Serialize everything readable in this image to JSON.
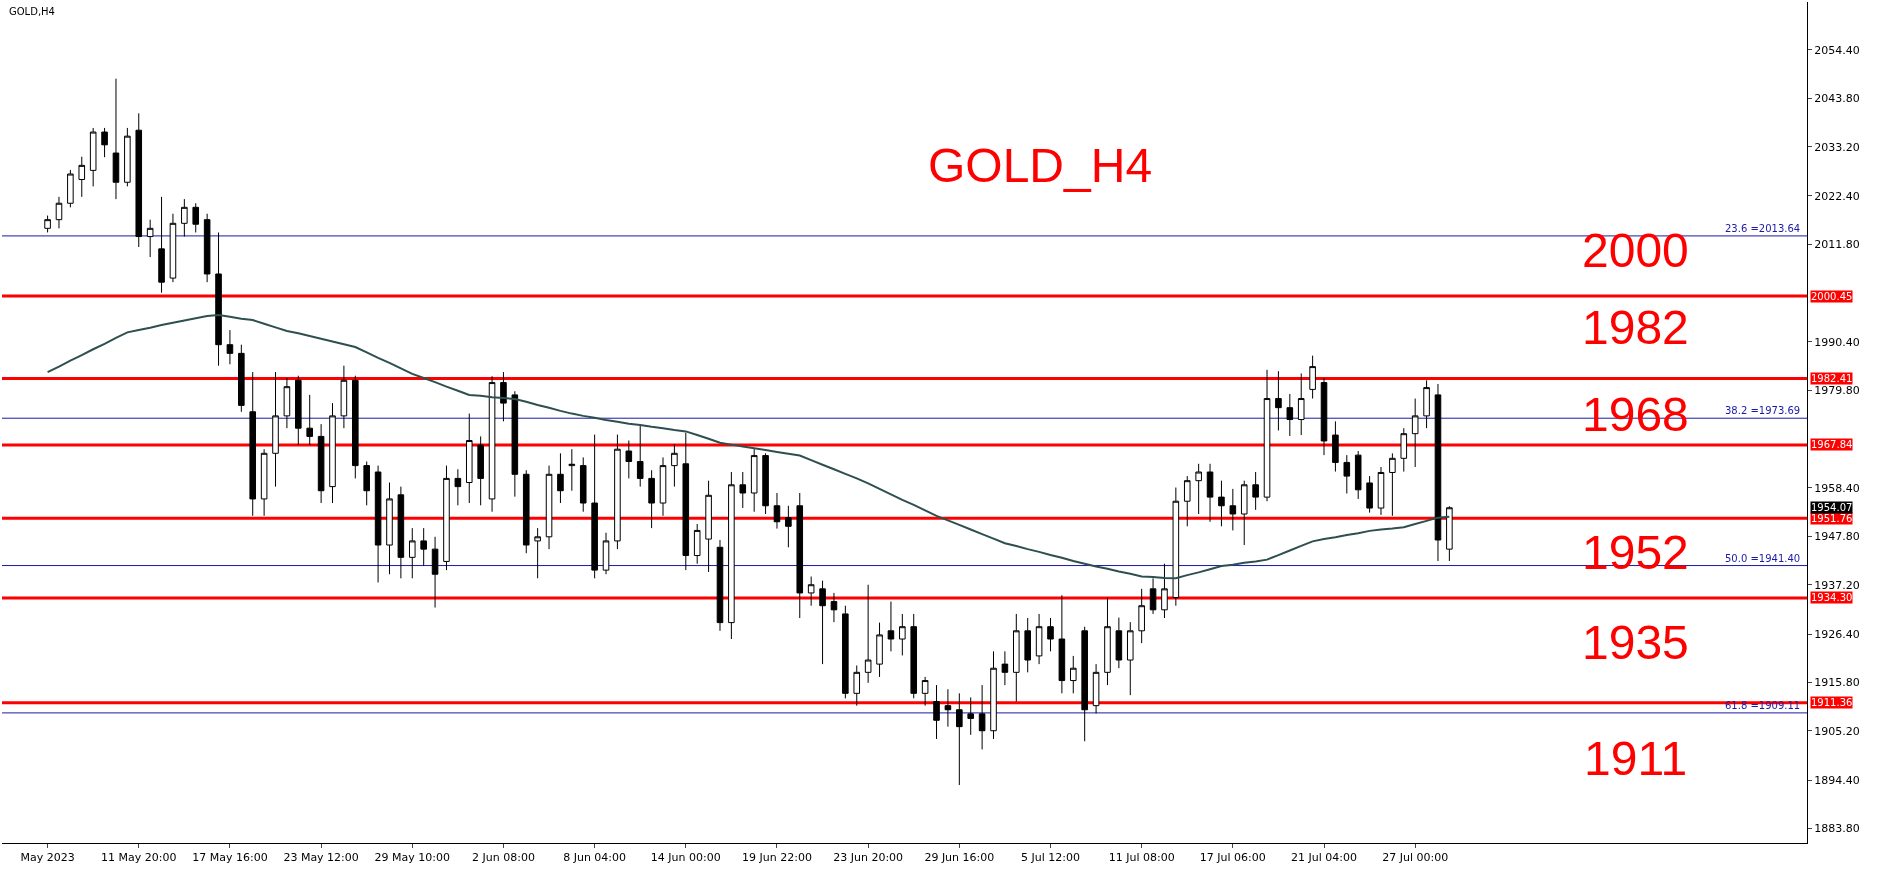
{
  "chart_data": {
    "type": "candlestick",
    "title": "GOLD,H4",
    "subtitle": "GOLD_H4",
    "color": "#000000",
    "categories": [
      "May 2023",
      null,
      null,
      null,
      null,
      null,
      null,
      null,
      "11 May 20:00",
      null,
      null,
      null,
      null,
      null,
      null,
      null,
      "17 May 16:00",
      null,
      null,
      null,
      null,
      null,
      null,
      null,
      "23 May 12:00",
      null,
      null,
      null,
      null,
      null,
      null,
      null,
      "29 May 10:00",
      null,
      null,
      null,
      null,
      null,
      null,
      null,
      "2 Jun 08:00",
      null,
      null,
      null,
      null,
      null,
      null,
      null,
      "8 Jun 04:00",
      null,
      null,
      null,
      null,
      null,
      null,
      null,
      "14 Jun 00:00",
      null,
      null,
      null,
      null,
      null,
      null,
      null,
      "19 Jun 22:00",
      null,
      null,
      null,
      null,
      null,
      null,
      null,
      "23 Jun 20:00",
      null,
      null,
      null,
      null,
      null,
      null,
      null,
      "29 Jun 16:00",
      null,
      null,
      null,
      null,
      null,
      null,
      null,
      "5 Jul 12:00",
      null,
      null,
      null,
      null,
      null,
      null,
      null,
      "11 Jul 08:00",
      null,
      null,
      null,
      null,
      null,
      null,
      null,
      "17 Jul 06:00",
      null,
      null,
      null,
      null,
      null,
      null,
      null,
      "21 Jul 04:00",
      null,
      null,
      null,
      null,
      null,
      null,
      null,
      "27 Jul 00:00",
      null,
      null,
      null
    ],
    "ohlc": [
      [
        2015.3,
        2018.1,
        2014.4,
        2017.2
      ],
      [
        2017.2,
        2022.2,
        2015.3,
        2020.8
      ],
      [
        2020.8,
        2028.1,
        2019.9,
        2027.2
      ],
      [
        2026.0,
        2031.0,
        2022.2,
        2029.1
      ],
      [
        2028.0,
        2037.3,
        2024.5,
        2036.4
      ],
      [
        2036.4,
        2037.3,
        2030.9,
        2033.6
      ],
      [
        2031.8,
        2048.1,
        2021.7,
        2025.4
      ],
      [
        2025.4,
        2037.3,
        2024.5,
        2035.5
      ],
      [
        2036.8,
        2040.5,
        2011.2,
        2013.5
      ],
      [
        2013.5,
        2017.2,
        2009.0,
        2015.3
      ],
      [
        2010.8,
        2022.2,
        2001.2,
        2003.5
      ],
      [
        2004.4,
        2018.5,
        2003.5,
        2016.4
      ],
      [
        2016.4,
        2021.7,
        2013.5,
        2019.9
      ],
      [
        2019.9,
        2020.8,
        2014.4,
        2016.2
      ],
      [
        2017.2,
        2018.5,
        2003.5,
        2005.3
      ],
      [
        2005.3,
        2014.4,
        1985.2,
        1989.8
      ],
      [
        1989.8,
        1993.0,
        1985.5,
        1987.9
      ],
      [
        1987.9,
        1989.8,
        1975.1,
        1976.5
      ],
      [
        1975.1,
        1983.8,
        1952.3,
        1956.0
      ],
      [
        1956.0,
        1966.9,
        1952.3,
        1966.0
      ],
      [
        1966.0,
        1983.8,
        1958.7,
        1974.2
      ],
      [
        1974.2,
        1982.5,
        1971.5,
        1980.6
      ],
      [
        1982.0,
        1983.0,
        1967.8,
        1971.5
      ],
      [
        1971.5,
        1978.8,
        1967.8,
        1969.7
      ],
      [
        1969.7,
        1972.4,
        1955.1,
        1957.8
      ],
      [
        1958.7,
        1977.0,
        1955.1,
        1974.2
      ],
      [
        1974.2,
        1985.2,
        1971.5,
        1982.0
      ],
      [
        1982.0,
        1983.0,
        1960.5,
        1963.3
      ],
      [
        1963.3,
        1964.2,
        1954.6,
        1957.8
      ],
      [
        1961.9,
        1963.3,
        1937.7,
        1945.9
      ],
      [
        1945.9,
        1959.6,
        1939.5,
        1956.0
      ],
      [
        1956.9,
        1958.7,
        1938.6,
        1943.2
      ],
      [
        1943.2,
        1949.6,
        1938.6,
        1946.8
      ],
      [
        1946.8,
        1949.6,
        1941.4,
        1945.0
      ],
      [
        1945.0,
        1947.7,
        1932.2,
        1939.5
      ],
      [
        1942.3,
        1963.3,
        1940.4,
        1960.5
      ],
      [
        1960.5,
        1962.5,
        1954.6,
        1958.7
      ],
      [
        1959.6,
        1974.7,
        1955.1,
        1968.8
      ],
      [
        1967.8,
        1969.7,
        1954.6,
        1960.5
      ],
      [
        1956.0,
        1982.9,
        1953.2,
        1981.5
      ],
      [
        1981.5,
        1983.8,
        1973.0,
        1977.0
      ],
      [
        1978.8,
        1979.6,
        1956.5,
        1961.4
      ],
      [
        1961.4,
        1962.3,
        1944.1,
        1945.9
      ],
      [
        1946.8,
        1949.6,
        1938.6,
        1947.7
      ],
      [
        1947.7,
        1963.3,
        1945.0,
        1961.4
      ],
      [
        1961.4,
        1966.0,
        1955.1,
        1957.8
      ],
      [
        1963.3,
        1966.9,
        1957.8,
        1963.6
      ],
      [
        1963.3,
        1965.1,
        1953.2,
        1955.1
      ],
      [
        1955.1,
        1970.1,
        1938.6,
        1940.4
      ],
      [
        1940.4,
        1948.6,
        1939.5,
        1946.8
      ],
      [
        1946.8,
        1970.1,
        1945.0,
        1966.9
      ],
      [
        1966.5,
        1968.8,
        1960.5,
        1964.2
      ],
      [
        1964.2,
        1972.4,
        1958.7,
        1960.5
      ],
      [
        1960.5,
        1962.3,
        1949.6,
        1955.1
      ],
      [
        1955.1,
        1965.1,
        1952.3,
        1963.3
      ],
      [
        1963.3,
        1968.0,
        1958.7,
        1966.0
      ],
      [
        1963.7,
        1970.5,
        1940.4,
        1943.6
      ],
      [
        1943.6,
        1950.5,
        1941.8,
        1949.1
      ],
      [
        1947.2,
        1960.0,
        1940.0,
        1956.8
      ],
      [
        1945.4,
        1947.0,
        1927.1,
        1928.9
      ],
      [
        1928.9,
        1961.9,
        1925.3,
        1959.1
      ],
      [
        1959.1,
        1961.9,
        1954.0,
        1957.3
      ],
      [
        1957.3,
        1966.9,
        1953.2,
        1965.5
      ],
      [
        1965.5,
        1966.0,
        1952.7,
        1954.5
      ],
      [
        1954.5,
        1957.3,
        1949.5,
        1951.0
      ],
      [
        1951.9,
        1954.5,
        1945.4,
        1950.0
      ],
      [
        1954.5,
        1957.3,
        1929.9,
        1935.4
      ],
      [
        1935.4,
        1939.0,
        1932.6,
        1937.2
      ],
      [
        1936.3,
        1938.1,
        1919.8,
        1932.6
      ],
      [
        1933.5,
        1935.4,
        1929.0,
        1931.7
      ],
      [
        1930.8,
        1932.6,
        1912.3,
        1913.4
      ],
      [
        1913.4,
        1919.5,
        1910.7,
        1918.0
      ],
      [
        1918.0,
        1937.2,
        1915.7,
        1920.7
      ],
      [
        1919.8,
        1928.9,
        1917.0,
        1926.2
      ],
      [
        1927.1,
        1933.5,
        1922.6,
        1925.3
      ],
      [
        1925.3,
        1930.8,
        1921.7,
        1928.0
      ],
      [
        1928.0,
        1930.8,
        1912.3,
        1913.4
      ],
      [
        1913.4,
        1917.0,
        1910.7,
        1916.2
      ],
      [
        1911.6,
        1915.2,
        1903.4,
        1907.5
      ],
      [
        1910.7,
        1914.3,
        1906.1,
        1909.8
      ],
      [
        1909.8,
        1913.4,
        1893.3,
        1906.1
      ],
      [
        1908.9,
        1912.5,
        1904.3,
        1907.9
      ],
      [
        1908.9,
        1915.2,
        1901.1,
        1905.2
      ],
      [
        1905.2,
        1922.6,
        1903.4,
        1918.9
      ],
      [
        1919.8,
        1922.6,
        1915.2,
        1918.0
      ],
      [
        1918.0,
        1930.8,
        1911.6,
        1927.1
      ],
      [
        1927.1,
        1929.9,
        1918.0,
        1920.7
      ],
      [
        1921.6,
        1930.8,
        1919.8,
        1928.0
      ],
      [
        1928.0,
        1929.9,
        1922.6,
        1925.3
      ],
      [
        1925.3,
        1934.9,
        1913.4,
        1916.2
      ],
      [
        1916.2,
        1921.6,
        1913.4,
        1918.9
      ],
      [
        1927.1,
        1928.0,
        1902.9,
        1909.8
      ],
      [
        1910.7,
        1919.8,
        1909.0,
        1918.0
      ],
      [
        1918.0,
        1934.4,
        1915.2,
        1928.0
      ],
      [
        1927.1,
        1930.0,
        1918.9,
        1920.7
      ],
      [
        1920.7,
        1929.0,
        1913.0,
        1927.1
      ],
      [
        1927.1,
        1936.3,
        1924.4,
        1932.6
      ],
      [
        1936.3,
        1938.6,
        1930.8,
        1931.7
      ],
      [
        1931.7,
        1941.8,
        1929.9,
        1936.3
      ],
      [
        1934.4,
        1958.5,
        1932.6,
        1955.5
      ],
      [
        1955.5,
        1961.0,
        1950.0,
        1960.0
      ],
      [
        1960.0,
        1963.7,
        1952.7,
        1961.9
      ],
      [
        1961.9,
        1963.7,
        1951.0,
        1956.4
      ],
      [
        1956.4,
        1960.0,
        1950.0,
        1954.5
      ],
      [
        1954.5,
        1958.2,
        1949.1,
        1952.7
      ],
      [
        1952.7,
        1960.0,
        1945.9,
        1959.1
      ],
      [
        1959.1,
        1961.9,
        1953.6,
        1956.4
      ],
      [
        1956.4,
        1984.3,
        1955.5,
        1978.0
      ],
      [
        1978.0,
        1984.0,
        1971.0,
        1976.0
      ],
      [
        1976.0,
        1979.0,
        1969.8,
        1973.4
      ],
      [
        1973.4,
        1983.5,
        1970.0,
        1978.0
      ],
      [
        1980.0,
        1987.4,
        1978.0,
        1985.0
      ],
      [
        1981.5,
        1982.5,
        1965.6,
        1968.7
      ],
      [
        1970.0,
        1973.0,
        1962.0,
        1964.0
      ],
      [
        1964.0,
        1965.6,
        1957.2,
        1961.0
      ],
      [
        1965.6,
        1966.5,
        1956.0,
        1958.0
      ],
      [
        1959.5,
        1961.0,
        1953.0,
        1954.0
      ],
      [
        1954.0,
        1963.0,
        1952.5,
        1961.8
      ],
      [
        1961.8,
        1966.0,
        1952.3,
        1964.9
      ],
      [
        1964.9,
        1971.5,
        1962.0,
        1970.3
      ],
      [
        1970.3,
        1978.0,
        1963.0,
        1974.2
      ],
      [
        1974.2,
        1982.0,
        1971.5,
        1980.4
      ],
      [
        1978.8,
        1981.2,
        1942.4,
        1947.0
      ],
      [
        1945.0,
        1954.4,
        1942.4,
        1954.07
      ]
    ],
    "series": [
      {
        "type": "line",
        "color": "#2f4f4f",
        "values": [
          1983.8,
          1985.0,
          1986.3,
          1987.5,
          1988.8,
          1990.0,
          1991.3,
          1992.5,
          1993.0,
          1993.5,
          1994.1,
          1994.6,
          1995.1,
          1995.6,
          1996.1,
          1996.3,
          1995.9,
          1995.5,
          1995.2,
          1994.4,
          1993.6,
          1992.8,
          1992.3,
          1991.7,
          1991.1,
          1990.5,
          1989.9,
          1989.3,
          1988.1,
          1986.9,
          1985.8,
          1984.6,
          1983.4,
          1982.5,
          1981.6,
          1980.6,
          1979.7,
          1978.8,
          1978.6,
          1978.3,
          1978.1,
          1977.9,
          1977.3,
          1976.6,
          1976.0,
          1975.3,
          1974.7,
          1974.2,
          1973.8,
          1973.3,
          1972.9,
          1972.5,
          1972.2,
          1971.8,
          1971.5,
          1971.1,
          1970.8,
          1970.0,
          1969.2,
          1968.3,
          1967.9,
          1967.5,
          1967.1,
          1966.7,
          1966.3,
          1965.9,
          1965.5,
          1964.5,
          1963.5,
          1962.5,
          1961.5,
          1960.5,
          1959.4,
          1958.2,
          1957.0,
          1955.8,
          1954.7,
          1953.5,
          1952.3,
          1951.3,
          1950.3,
          1949.3,
          1948.3,
          1947.3,
          1946.3,
          1945.7,
          1945.0,
          1944.4,
          1943.7,
          1943.1,
          1942.4,
          1941.8,
          1941.2,
          1940.7,
          1940.1,
          1939.6,
          1939.0,
          1938.9,
          1938.7,
          1938.6,
          1939.3,
          1939.9,
          1940.6,
          1941.3,
          1941.6,
          1942.0,
          1942.3,
          1942.7,
          1943.7,
          1944.7,
          1945.7,
          1946.7,
          1947.2,
          1947.6,
          1948.1,
          1948.5,
          1949.0,
          1949.3,
          1949.5,
          1949.8,
          1950.5,
          1951.2,
          1951.9,
          1952.1
        ]
      }
    ],
    "ylim": [
      1880.6,
      2064.9
    ],
    "yticks": [
      {
        "value": 2054.4,
        "label": "2054.40"
      },
      {
        "value": 2043.8,
        "label": "2043.80"
      },
      {
        "value": 2033.2,
        "label": "2033.20"
      },
      {
        "value": 2022.4,
        "label": "2022.40"
      },
      {
        "value": 2011.8,
        "label": "2011.80"
      },
      {
        "value": 1990.4,
        "label": "1990.40"
      },
      {
        "value": 1979.8,
        "label": "1979.80"
      },
      {
        "value": 1958.4,
        "label": "1958.40"
      },
      {
        "value": 1947.8,
        "label": "1947.80"
      },
      {
        "value": 1937.2,
        "label": "1937.20"
      },
      {
        "value": 1926.4,
        "label": "1926.40"
      },
      {
        "value": 1915.8,
        "label": "1915.80"
      },
      {
        "value": 1905.2,
        "label": "1905.20"
      },
      {
        "value": 1894.4,
        "label": "1894.40"
      },
      {
        "value": 1883.8,
        "label": "1883.80"
      }
    ],
    "ref_lines": [
      {
        "axis": "y",
        "value": 2013.64,
        "label": "23.6 =2013.64",
        "color": "#1a1aa6"
      },
      {
        "axis": "y",
        "value": 1973.69,
        "label": "38.2 =1973.69",
        "color": "#1a1aa6"
      },
      {
        "axis": "y",
        "value": 1941.4,
        "label": "50.0 =1941.40",
        "color": "#1a1aa6"
      },
      {
        "axis": "y",
        "value": 1909.11,
        "label": "61.8 =1909.11",
        "color": "#1a1aa6"
      },
      {
        "axis": "y",
        "value": 2000.45,
        "label": "2000.45",
        "color": "#ff0000"
      },
      {
        "axis": "y",
        "value": 1982.41,
        "label": "1982.41",
        "color": "#ff0000"
      },
      {
        "axis": "y",
        "value": 1967.84,
        "label": "1967.84",
        "color": "#ff0000"
      },
      {
        "axis": "y",
        "value": 1951.76,
        "label": "1951.76",
        "color": "#ff0000"
      },
      {
        "axis": "y",
        "value": 1934.3,
        "label": "1934.30",
        "color": "#ff0000"
      },
      {
        "axis": "y",
        "value": 1911.36,
        "label": "1911.36",
        "color": "#ff0000"
      }
    ],
    "annotations": [
      "2000",
      "1982",
      "1968",
      "1952",
      "1935",
      "1911",
      "1954.07"
    ],
    "grid": false
  }
}
